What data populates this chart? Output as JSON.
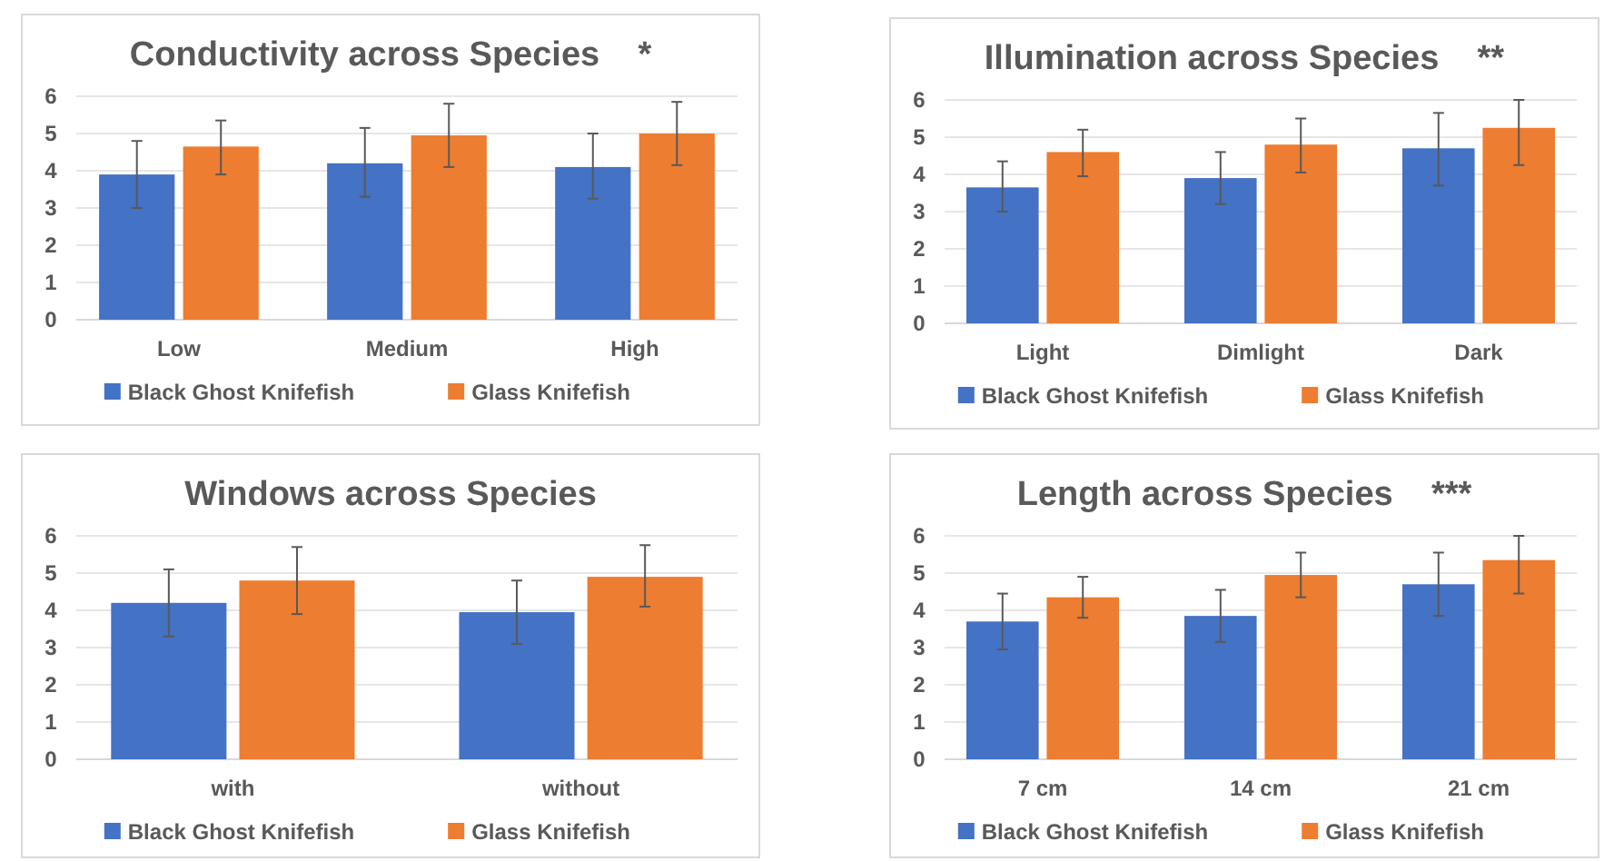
{
  "chart_data": [
    {
      "type": "bar",
      "title": "Conductivity across Species    *",
      "categories": [
        "Low",
        "Medium",
        "High"
      ],
      "ylim": [
        0,
        6
      ],
      "yticks": [
        0,
        1,
        2,
        3,
        4,
        5,
        6
      ],
      "grid": "y",
      "legend": "bottom",
      "series": [
        {
          "name": "Black Ghost Knifefish",
          "color": "#4472c4",
          "values": [
            3.9,
            4.2,
            4.1
          ],
          "errors": [
            [
              3.0,
              4.8
            ],
            [
              3.3,
              5.15
            ],
            [
              3.25,
              5.0
            ]
          ]
        },
        {
          "name": "Glass Knifefish",
          "color": "#ed7d31",
          "values": [
            4.65,
            4.95,
            5.0
          ],
          "errors": [
            [
              3.9,
              5.35
            ],
            [
              4.1,
              5.8
            ],
            [
              4.15,
              5.85
            ]
          ]
        }
      ]
    },
    {
      "type": "bar",
      "title": "Illumination across Species    **",
      "categories": [
        "Light",
        "Dimlight",
        "Dark"
      ],
      "ylim": [
        0,
        6
      ],
      "yticks": [
        0,
        1,
        2,
        3,
        4,
        5,
        6
      ],
      "grid": "y",
      "legend": "bottom",
      "series": [
        {
          "name": "Black Ghost Knifefish",
          "color": "#4472c4",
          "values": [
            3.65,
            3.9,
            4.7
          ],
          "errors": [
            [
              3.0,
              4.35
            ],
            [
              3.2,
              4.6
            ],
            [
              3.7,
              5.65
            ]
          ]
        },
        {
          "name": "Glass Knifefish",
          "color": "#ed7d31",
          "values": [
            4.6,
            4.8,
            5.25
          ],
          "errors": [
            [
              3.95,
              5.2
            ],
            [
              4.05,
              5.5
            ],
            [
              4.25,
              6.0
            ]
          ]
        }
      ]
    },
    {
      "type": "bar",
      "title": "Windows across Species",
      "categories": [
        "with",
        "without"
      ],
      "ylim": [
        0,
        6
      ],
      "yticks": [
        0,
        1,
        2,
        3,
        4,
        5,
        6
      ],
      "grid": "y",
      "legend": "bottom",
      "series": [
        {
          "name": "Black Ghost Knifefish",
          "color": "#4472c4",
          "values": [
            4.2,
            3.95
          ],
          "errors": [
            [
              3.3,
              5.1
            ],
            [
              3.1,
              4.8
            ]
          ]
        },
        {
          "name": "Glass Knifefish",
          "color": "#ed7d31",
          "values": [
            4.8,
            4.9
          ],
          "errors": [
            [
              3.9,
              5.7
            ],
            [
              4.1,
              5.75
            ]
          ]
        }
      ]
    },
    {
      "type": "bar",
      "title": "Length across Species    ***",
      "categories": [
        "7 cm",
        "14 cm",
        "21 cm"
      ],
      "ylim": [
        0,
        6
      ],
      "yticks": [
        0,
        1,
        2,
        3,
        4,
        5,
        6
      ],
      "grid": "y",
      "legend": "bottom",
      "series": [
        {
          "name": "Black Ghost Knifefish",
          "color": "#4472c4",
          "values": [
            3.7,
            3.85,
            4.7
          ],
          "errors": [
            [
              2.95,
              4.45
            ],
            [
              3.15,
              4.55
            ],
            [
              3.85,
              5.55
            ]
          ]
        },
        {
          "name": "Glass Knifefish",
          "color": "#ed7d31",
          "values": [
            4.35,
            4.95,
            5.35
          ],
          "errors": [
            [
              3.8,
              4.9
            ],
            [
              4.35,
              5.55
            ],
            [
              4.45,
              6.0
            ]
          ]
        }
      ]
    }
  ]
}
